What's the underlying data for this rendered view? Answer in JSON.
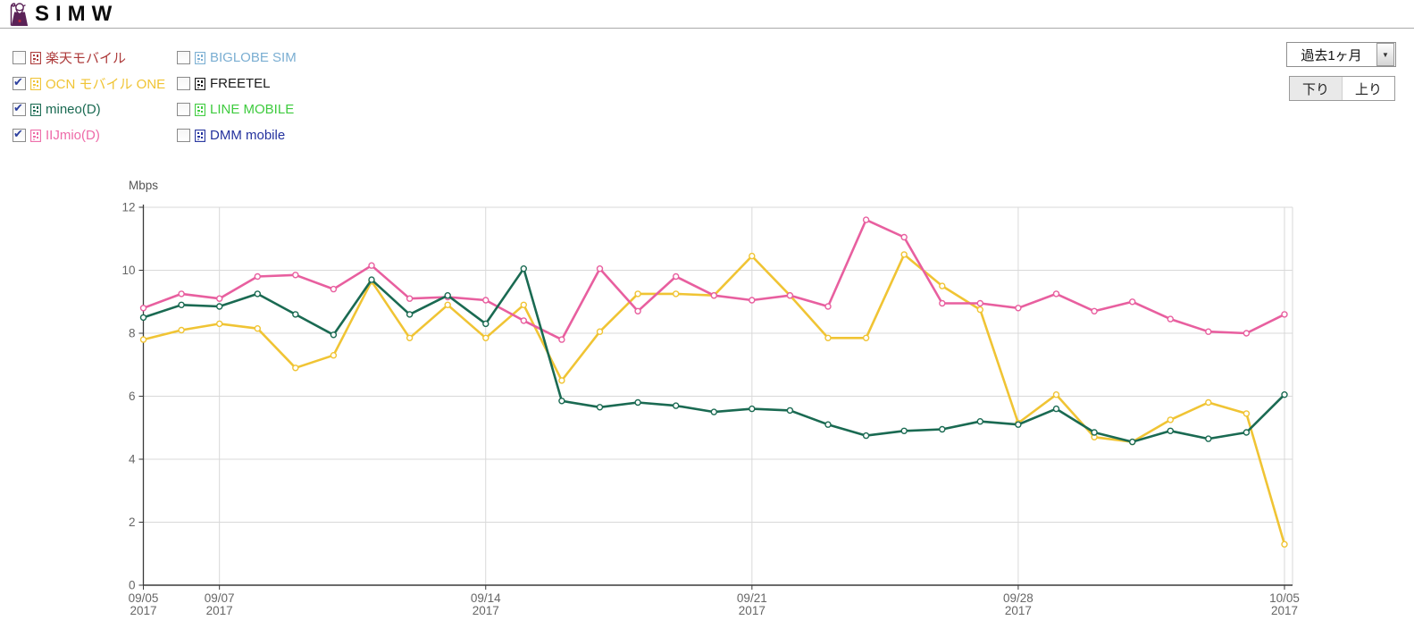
{
  "header": {
    "logo_text": "SIMW"
  },
  "legend": {
    "columns": [
      [
        {
          "label": "楽天モバイル",
          "color": "#ad3a3a",
          "checked": false
        },
        {
          "label": "OCN モバイル ONE",
          "color": "#f0c434",
          "checked": true
        },
        {
          "label": "mineo(D)",
          "color": "#1a6a52",
          "checked": true
        },
        {
          "label": "IIJmio(D)",
          "color": "#ee6aa8",
          "checked": true
        }
      ],
      [
        {
          "label": "BIGLOBE SIM",
          "color": "#7aaed2",
          "checked": false
        },
        {
          "label": "FREETEL",
          "color": "#1a1a1a",
          "checked": false
        },
        {
          "label": "LINE MOBILE",
          "color": "#3ecb3e",
          "checked": false
        },
        {
          "label": "DMM mobile",
          "color": "#24329e",
          "checked": false
        }
      ]
    ]
  },
  "controls": {
    "period_select_value": "過去1ヶ月",
    "download_label": "下り",
    "upload_label": "上り"
  },
  "chart_data": {
    "type": "line",
    "unit_label": "Mbps",
    "ylim": [
      0,
      12
    ],
    "yticks": [
      0,
      2,
      4,
      6,
      8,
      10,
      12
    ],
    "grid": true,
    "x_ticks": [
      {
        "day": 0,
        "date": "09/05",
        "year": "2017"
      },
      {
        "day": 2,
        "date": "09/07",
        "year": "2017"
      },
      {
        "day": 9,
        "date": "09/14",
        "year": "2017"
      },
      {
        "day": 16,
        "date": "09/21",
        "year": "2017"
      },
      {
        "day": 23,
        "date": "09/28",
        "year": "2017"
      },
      {
        "day": 30,
        "date": "10/05",
        "year": "2017"
      }
    ],
    "series": [
      {
        "name": "OCN モバイル ONE",
        "color": "#f0c434",
        "values": [
          7.8,
          8.1,
          8.3,
          8.15,
          6.9,
          7.3,
          9.65,
          7.85,
          8.9,
          7.85,
          8.9,
          6.5,
          8.05,
          9.25,
          9.25,
          9.2,
          10.45,
          9.2,
          7.85,
          7.85,
          10.5,
          9.5,
          8.75,
          5.15,
          6.05,
          4.7,
          4.55,
          5.25,
          5.8,
          5.45,
          1.3
        ]
      },
      {
        "name": "IIJmio(D)",
        "color": "#e85f9f",
        "values": [
          8.8,
          9.25,
          9.1,
          9.8,
          9.85,
          9.4,
          10.15,
          9.1,
          9.15,
          9.05,
          8.4,
          7.8,
          10.05,
          8.7,
          9.8,
          9.2,
          9.05,
          9.2,
          8.85,
          11.6,
          11.05,
          8.95,
          8.95,
          8.8,
          9.25,
          8.7,
          9.0,
          8.45,
          8.05,
          8.0,
          8.6
        ]
      },
      {
        "name": "mineo(D)",
        "color": "#1a6a52",
        "values": [
          8.5,
          8.9,
          8.85,
          9.25,
          8.6,
          7.95,
          9.7,
          8.6,
          9.2,
          8.3,
          10.05,
          5.85,
          5.65,
          5.8,
          5.7,
          5.5,
          5.6,
          5.55,
          5.1,
          4.75,
          4.9,
          4.95,
          5.2,
          5.1,
          5.6,
          4.85,
          4.55,
          4.9,
          4.65,
          4.85,
          6.05
        ]
      }
    ]
  }
}
